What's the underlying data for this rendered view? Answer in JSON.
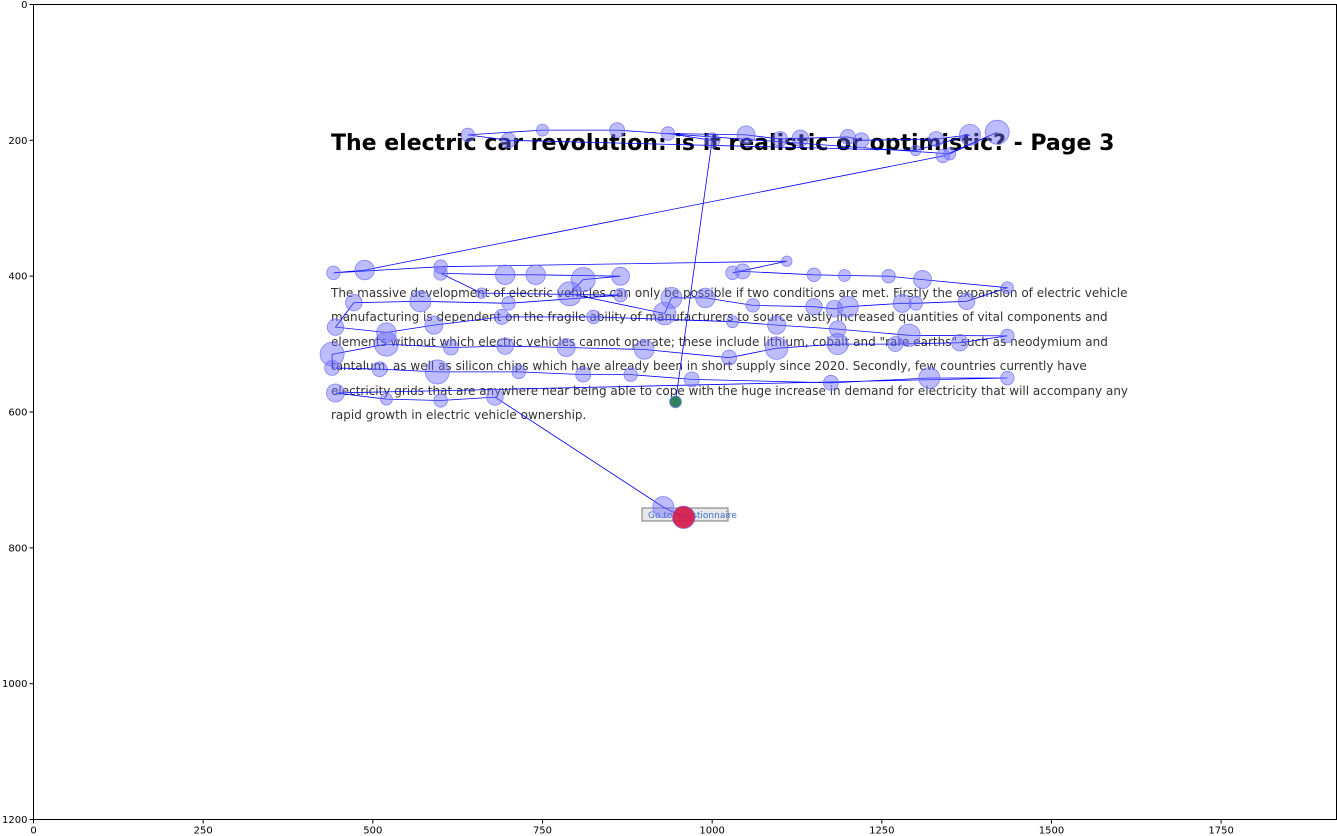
{
  "chart_data": {
    "type": "scatter",
    "xlim": [
      0,
      1920
    ],
    "ylim": [
      1200,
      0
    ],
    "x_ticks": [
      0,
      250,
      500,
      750,
      1000,
      1250,
      1500,
      1750
    ],
    "y_ticks": [
      0,
      200,
      400,
      600,
      800,
      1000,
      1200
    ],
    "grid": false,
    "colors": {
      "fixation": "#6b6bff",
      "path": "#0000ff",
      "start": "#1f7a4a",
      "end": "#dc143c"
    },
    "stimulus": {
      "title": "The electric car revolution: is it realistic or optimistic? - Page 3",
      "paragraph_lines": [
        "The massive development of electric vehicles can only be possible if two conditions are met. Firstly the expansion of electric vehicle",
        "manufacturing is dependent on the fragile ability of manufacturers to source vastly increased quantities of vital components and",
        "elements without which electric vehicles cannot operate; these include lithium, cobalt and \"rare earths\" such as neodymium and",
        "tantalum, as well as silicon chips which have already been in short supply since 2020. Secondly, few countries currently have",
        "electricity grids that are anywhere near being able to cope with the huge increase in demand for electricity that will accompany any",
        "rapid growth in electric vehicle ownership."
      ],
      "button_label": "Go to questionnaire"
    },
    "start_point": {
      "x": 946,
      "y": 585
    },
    "fixations": [
      {
        "x": 946,
        "y": 585,
        "d": 8
      },
      {
        "x": 1000,
        "y": 200,
        "d": 10
      },
      {
        "x": 935,
        "y": 190,
        "d": 9
      },
      {
        "x": 1050,
        "y": 192,
        "d": 12
      },
      {
        "x": 1100,
        "y": 198,
        "d": 10
      },
      {
        "x": 1130,
        "y": 197,
        "d": 11
      },
      {
        "x": 1200,
        "y": 195,
        "d": 10
      },
      {
        "x": 1220,
        "y": 200,
        "d": 10
      },
      {
        "x": 1330,
        "y": 198,
        "d": 10
      },
      {
        "x": 1380,
        "y": 192,
        "d": 14
      },
      {
        "x": 1300,
        "y": 215,
        "d": 7
      },
      {
        "x": 700,
        "y": 200,
        "d": 10
      },
      {
        "x": 640,
        "y": 192,
        "d": 9
      },
      {
        "x": 750,
        "y": 185,
        "d": 8
      },
      {
        "x": 860,
        "y": 185,
        "d": 10
      },
      {
        "x": 1350,
        "y": 220,
        "d": 8
      },
      {
        "x": 1420,
        "y": 188,
        "d": 16
      },
      {
        "x": 1340,
        "y": 223,
        "d": 9
      },
      {
        "x": 488,
        "y": 391,
        "d": 13
      },
      {
        "x": 442,
        "y": 395,
        "d": 9
      },
      {
        "x": 600,
        "y": 386,
        "d": 9
      },
      {
        "x": 1110,
        "y": 378,
        "d": 7
      },
      {
        "x": 1030,
        "y": 395,
        "d": 9
      },
      {
        "x": 1045,
        "y": 393,
        "d": 10
      },
      {
        "x": 1150,
        "y": 398,
        "d": 9
      },
      {
        "x": 1195,
        "y": 399,
        "d": 8
      },
      {
        "x": 1260,
        "y": 400,
        "d": 9
      },
      {
        "x": 1310,
        "y": 405,
        "d": 12
      },
      {
        "x": 1435,
        "y": 417,
        "d": 8
      },
      {
        "x": 1375,
        "y": 437,
        "d": 11
      },
      {
        "x": 1300,
        "y": 440,
        "d": 9
      },
      {
        "x": 1280,
        "y": 440,
        "d": 12
      },
      {
        "x": 1200,
        "y": 445,
        "d": 14
      },
      {
        "x": 1180,
        "y": 448,
        "d": 11
      },
      {
        "x": 1150,
        "y": 445,
        "d": 11
      },
      {
        "x": 1060,
        "y": 443,
        "d": 9
      },
      {
        "x": 990,
        "y": 432,
        "d": 13
      },
      {
        "x": 940,
        "y": 432,
        "d": 14
      },
      {
        "x": 930,
        "y": 455,
        "d": 15
      },
      {
        "x": 790,
        "y": 426,
        "d": 16
      },
      {
        "x": 810,
        "y": 405,
        "d": 16
      },
      {
        "x": 865,
        "y": 400,
        "d": 12
      },
      {
        "x": 740,
        "y": 398,
        "d": 13
      },
      {
        "x": 695,
        "y": 398,
        "d": 13
      },
      {
        "x": 600,
        "y": 396,
        "d": 9
      },
      {
        "x": 660,
        "y": 425,
        "d": 7
      },
      {
        "x": 865,
        "y": 428,
        "d": 9
      },
      {
        "x": 700,
        "y": 440,
        "d": 9
      },
      {
        "x": 570,
        "y": 437,
        "d": 14
      },
      {
        "x": 472,
        "y": 439,
        "d": 11
      },
      {
        "x": 445,
        "y": 475,
        "d": 11
      },
      {
        "x": 520,
        "y": 483,
        "d": 13
      },
      {
        "x": 590,
        "y": 472,
        "d": 12
      },
      {
        "x": 690,
        "y": 460,
        "d": 10
      },
      {
        "x": 825,
        "y": 460,
        "d": 9
      },
      {
        "x": 1030,
        "y": 467,
        "d": 8
      },
      {
        "x": 1095,
        "y": 472,
        "d": 12
      },
      {
        "x": 1185,
        "y": 478,
        "d": 11
      },
      {
        "x": 1290,
        "y": 487,
        "d": 15
      },
      {
        "x": 1435,
        "y": 488,
        "d": 9
      },
      {
        "x": 1365,
        "y": 498,
        "d": 11
      },
      {
        "x": 1270,
        "y": 500,
        "d": 10
      },
      {
        "x": 1185,
        "y": 500,
        "d": 14
      },
      {
        "x": 1095,
        "y": 506,
        "d": 15
      },
      {
        "x": 1025,
        "y": 520,
        "d": 10
      },
      {
        "x": 900,
        "y": 508,
        "d": 13
      },
      {
        "x": 785,
        "y": 505,
        "d": 12
      },
      {
        "x": 695,
        "y": 503,
        "d": 11
      },
      {
        "x": 615,
        "y": 505,
        "d": 10
      },
      {
        "x": 520,
        "y": 500,
        "d": 16
      },
      {
        "x": 440,
        "y": 515,
        "d": 16
      },
      {
        "x": 440,
        "y": 535,
        "d": 10
      },
      {
        "x": 510,
        "y": 537,
        "d": 10
      },
      {
        "x": 595,
        "y": 541,
        "d": 16
      },
      {
        "x": 715,
        "y": 541,
        "d": 9
      },
      {
        "x": 810,
        "y": 545,
        "d": 10
      },
      {
        "x": 880,
        "y": 545,
        "d": 9
      },
      {
        "x": 970,
        "y": 552,
        "d": 10
      },
      {
        "x": 1175,
        "y": 557,
        "d": 10
      },
      {
        "x": 1320,
        "y": 550,
        "d": 14
      },
      {
        "x": 1435,
        "y": 550,
        "d": 9
      },
      {
        "x": 445,
        "y": 572,
        "d": 12
      },
      {
        "x": 520,
        "y": 581,
        "d": 8
      },
      {
        "x": 600,
        "y": 583,
        "d": 9
      },
      {
        "x": 680,
        "y": 578,
        "d": 11
      },
      {
        "x": 928,
        "y": 740,
        "d": 14
      },
      {
        "x": 958,
        "y": 755,
        "d": 15
      }
    ],
    "end_point": {
      "x": 958,
      "y": 755
    }
  }
}
